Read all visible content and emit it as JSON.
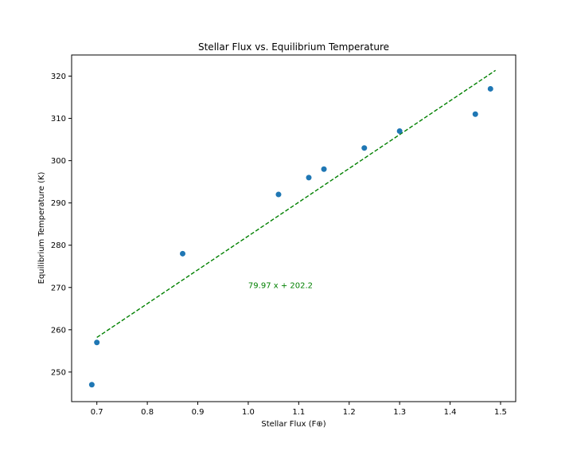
{
  "chart_data": {
    "type": "scatter",
    "title": "Stellar Flux vs. Equilibrium Temperature",
    "xlabel": "Stellar Flux (F⊕)",
    "ylabel": "Equilibrium Temperature (K)",
    "xlim": [
      0.65,
      1.53
    ],
    "ylim": [
      243,
      325
    ],
    "xticks": [
      0.7,
      0.8,
      0.9,
      1.0,
      1.1,
      1.2,
      1.3,
      1.4,
      1.5
    ],
    "xtick_labels": [
      "0.7",
      "0.8",
      "0.9",
      "1.0",
      "1.1",
      "1.2",
      "1.3",
      "1.4",
      "1.5"
    ],
    "yticks": [
      250,
      260,
      270,
      280,
      290,
      300,
      310,
      320
    ],
    "ytick_labels": [
      "250",
      "260",
      "270",
      "280",
      "290",
      "300",
      "310",
      "320"
    ],
    "grid": false,
    "series": [
      {
        "color": "#1f77b4",
        "x": [
          0.69,
          0.7,
          0.87,
          1.06,
          1.12,
          1.15,
          1.23,
          1.3,
          1.45,
          1.48
        ],
        "y": [
          247,
          257,
          278,
          292,
          296,
          298,
          303,
          307,
          311,
          317
        ]
      }
    ],
    "fit_line": {
      "color": "#008000",
      "slope": 79.97,
      "intercept": 202.2,
      "x_range": [
        0.7,
        1.49
      ],
      "style": "dashed"
    },
    "annotation": {
      "text": "79.97 x + 202.2",
      "x": 1.0,
      "y": 270.5,
      "color": "#008000"
    }
  }
}
